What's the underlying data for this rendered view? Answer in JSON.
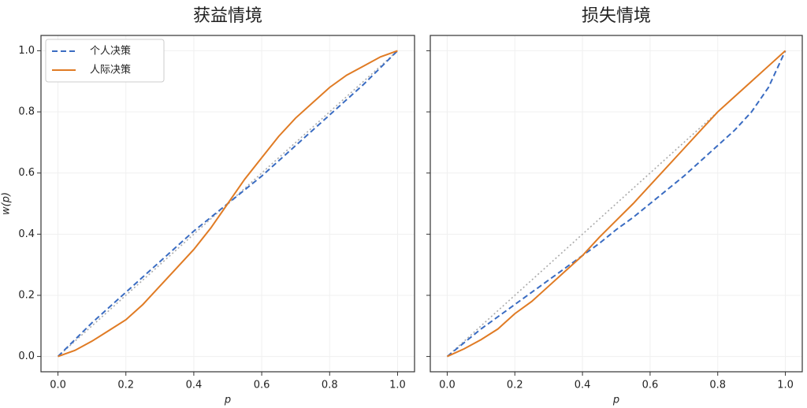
{
  "chart_data": [
    {
      "type": "line",
      "title": "获益情境",
      "xlabel": "p",
      "ylabel": "w(p)",
      "x": [
        0,
        0.05,
        0.1,
        0.15,
        0.2,
        0.25,
        0.3,
        0.35,
        0.4,
        0.45,
        0.5,
        0.55,
        0.6,
        0.65,
        0.7,
        0.75,
        0.8,
        0.85,
        0.9,
        0.95,
        1
      ],
      "series": [
        {
          "color": "#aaaaaa",
          "style": "dotted",
          "values": [
            0,
            0.05,
            0.1,
            0.15,
            0.2,
            0.25,
            0.3,
            0.35,
            0.4,
            0.45,
            0.5,
            0.55,
            0.6,
            0.65,
            0.7,
            0.75,
            0.8,
            0.85,
            0.9,
            0.95,
            1
          ]
        },
        {
          "name": "个人决策",
          "color": "#3a6cc2",
          "style": "dashed",
          "values": [
            0,
            0.055,
            0.11,
            0.16,
            0.21,
            0.26,
            0.31,
            0.36,
            0.41,
            0.455,
            0.5,
            0.545,
            0.59,
            0.64,
            0.69,
            0.74,
            0.79,
            0.84,
            0.89,
            0.945,
            1
          ]
        },
        {
          "name": "人际决策",
          "color": "#e07b24",
          "style": "solid",
          "values": [
            0,
            0.02,
            0.05,
            0.085,
            0.12,
            0.17,
            0.23,
            0.29,
            0.35,
            0.42,
            0.5,
            0.58,
            0.65,
            0.72,
            0.78,
            0.83,
            0.88,
            0.92,
            0.95,
            0.98,
            1
          ]
        }
      ],
      "xlim": [
        -0.05,
        1.05
      ],
      "ylim": [
        -0.05,
        1.05
      ],
      "xticks": [
        {
          "value": 0,
          "label": "0.0"
        },
        {
          "value": 0.2,
          "label": "0.2"
        },
        {
          "value": 0.4,
          "label": "0.4"
        },
        {
          "value": 0.6,
          "label": "0.6"
        },
        {
          "value": 0.8,
          "label": "0.8"
        },
        {
          "value": 1,
          "label": "1.0"
        }
      ],
      "yticks": [
        {
          "value": 0,
          "label": "0.0"
        },
        {
          "value": 0.2,
          "label": "0.2"
        },
        {
          "value": 0.4,
          "label": "0.4"
        },
        {
          "value": 0.6,
          "label": "0.6"
        },
        {
          "value": 0.8,
          "label": "0.8"
        },
        {
          "value": 1,
          "label": "1.0"
        }
      ],
      "grid": true,
      "legend": "upper left"
    },
    {
      "type": "line",
      "title": "损失情境",
      "xlabel": "p",
      "x": [
        0,
        0.05,
        0.1,
        0.15,
        0.2,
        0.25,
        0.3,
        0.35,
        0.4,
        0.45,
        0.5,
        0.55,
        0.6,
        0.65,
        0.7,
        0.75,
        0.8,
        0.85,
        0.9,
        0.95,
        1
      ],
      "series": [
        {
          "color": "#aaaaaa",
          "style": "dotted",
          "values": [
            0,
            0.05,
            0.1,
            0.15,
            0.2,
            0.25,
            0.3,
            0.35,
            0.4,
            0.45,
            0.5,
            0.55,
            0.6,
            0.65,
            0.7,
            0.75,
            0.8,
            0.85,
            0.9,
            0.95,
            1
          ]
        },
        {
          "color": "#3a6cc2",
          "style": "dashed",
          "values": [
            0,
            0.045,
            0.09,
            0.13,
            0.17,
            0.21,
            0.25,
            0.29,
            0.33,
            0.37,
            0.415,
            0.455,
            0.5,
            0.545,
            0.59,
            0.64,
            0.69,
            0.74,
            0.8,
            0.88,
            1
          ]
        },
        {
          "color": "#e07b24",
          "style": "solid",
          "values": [
            0,
            0.025,
            0.055,
            0.09,
            0.14,
            0.18,
            0.23,
            0.28,
            0.33,
            0.39,
            0.445,
            0.5,
            0.56,
            0.62,
            0.68,
            0.74,
            0.8,
            0.85,
            0.9,
            0.95,
            1
          ]
        }
      ],
      "xlim": [
        -0.05,
        1.05
      ],
      "ylim": [
        -0.05,
        1.05
      ],
      "xticks": [
        {
          "value": 0,
          "label": "0.0"
        },
        {
          "value": 0.2,
          "label": "0.2"
        },
        {
          "value": 0.4,
          "label": "0.4"
        },
        {
          "value": 0.6,
          "label": "0.6"
        },
        {
          "value": 0.8,
          "label": "0.8"
        },
        {
          "value": 1,
          "label": "1.0"
        }
      ],
      "grid": true
    }
  ]
}
